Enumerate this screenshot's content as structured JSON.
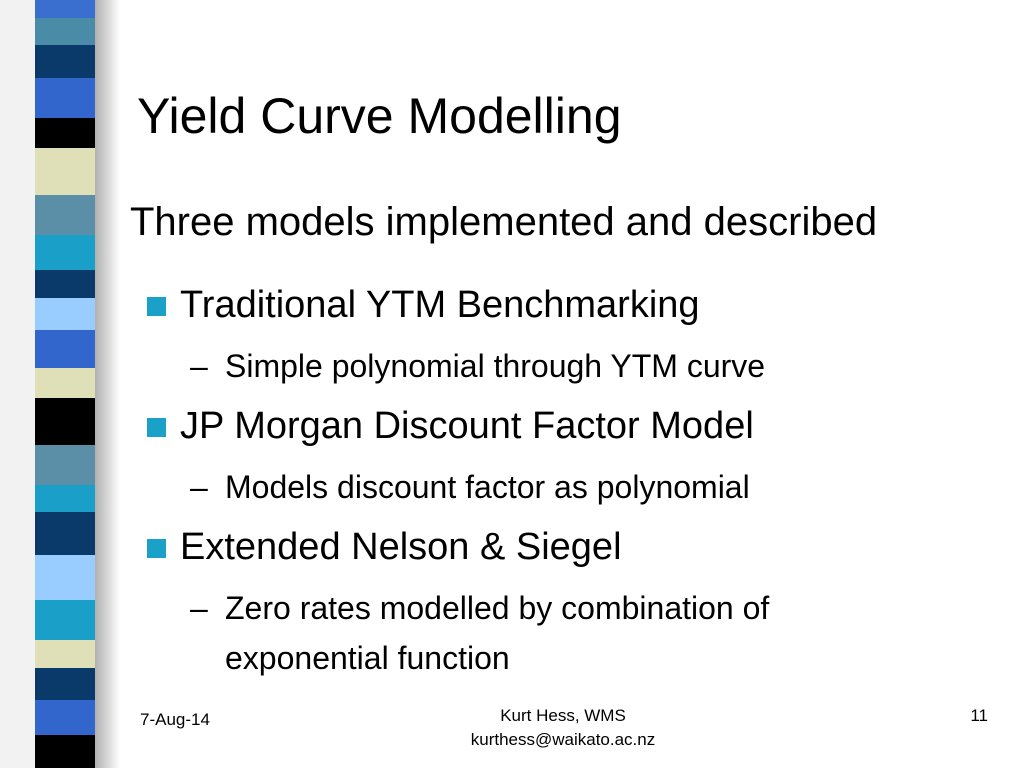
{
  "title": "Yield Curve Modelling",
  "subtitle": "Three models implemented and described",
  "bullets": [
    {
      "text": "Traditional YTM Benchmarking",
      "sub": [
        "Simple polynomial through YTM curve"
      ]
    },
    {
      "text": "JP Morgan Discount Factor Model",
      "sub": [
        "Models discount factor as polynomial"
      ]
    },
    {
      "text": "Extended Nelson & Siegel",
      "sub": [
        "Zero rates modelled by combination of exponential function"
      ]
    }
  ],
  "footer": {
    "date": "7-Aug-14",
    "author": [
      "Kurt Hess, WMS",
      "kurthess@waikato.ac.nz"
    ],
    "page": 11
  }
}
